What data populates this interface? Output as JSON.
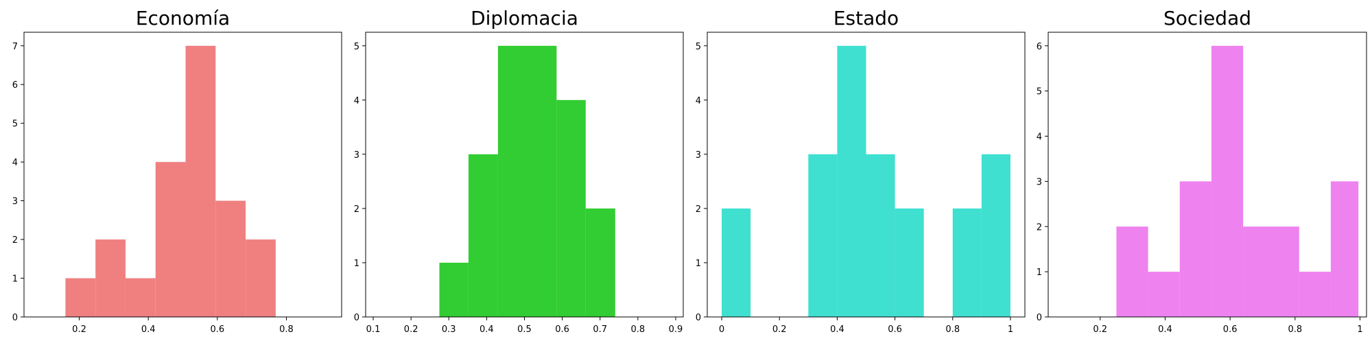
{
  "chart_data": [
    {
      "type": "histogram",
      "title": "Economía",
      "color": "#f08080",
      "xlim": [
        0.04,
        0.96
      ],
      "ylim": [
        0,
        7.35
      ],
      "xticks": [
        0.2,
        0.4,
        0.6,
        0.8
      ],
      "yticks": [
        0,
        1,
        2,
        3,
        4,
        5,
        6,
        7
      ],
      "bins": [
        {
          "x0": 0.16,
          "x1": 0.247,
          "count": 1
        },
        {
          "x0": 0.247,
          "x1": 0.334,
          "count": 2
        },
        {
          "x0": 0.334,
          "x1": 0.421,
          "count": 1
        },
        {
          "x0": 0.421,
          "x1": 0.508,
          "count": 4
        },
        {
          "x0": 0.508,
          "x1": 0.595,
          "count": 7
        },
        {
          "x0": 0.595,
          "x1": 0.682,
          "count": 3
        },
        {
          "x0": 0.682,
          "x1": 0.769,
          "count": 2
        }
      ]
    },
    {
      "type": "histogram",
      "title": "Diplomacia",
      "color": "#32cd32",
      "xlim": [
        0.08,
        0.92
      ],
      "ylim": [
        0,
        5.25
      ],
      "xticks": [
        0.1,
        0.2,
        0.3,
        0.4,
        0.5,
        0.6,
        0.7,
        0.8,
        0.9
      ],
      "yticks": [
        0,
        1,
        2,
        3,
        4,
        5
      ],
      "bins": [
        {
          "x0": 0.275,
          "x1": 0.352,
          "count": 1
        },
        {
          "x0": 0.352,
          "x1": 0.43,
          "count": 3
        },
        {
          "x0": 0.43,
          "x1": 0.585,
          "count": 5
        },
        {
          "x0": 0.585,
          "x1": 0.662,
          "count": 4
        },
        {
          "x0": 0.662,
          "x1": 0.74,
          "count": 2
        }
      ]
    },
    {
      "type": "histogram",
      "title": "Estado",
      "color": "#40e0d0",
      "xlim": [
        -0.05,
        1.05
      ],
      "ylim": [
        0,
        5.25
      ],
      "xticks": [
        0.0,
        0.2,
        0.4,
        0.6,
        0.8,
        1.0
      ],
      "yticks": [
        0,
        1,
        2,
        3,
        4,
        5
      ],
      "bins": [
        {
          "x0": 0.0,
          "x1": 0.1,
          "count": 2
        },
        {
          "x0": 0.3,
          "x1": 0.4,
          "count": 3
        },
        {
          "x0": 0.4,
          "x1": 0.5,
          "count": 5
        },
        {
          "x0": 0.5,
          "x1": 0.6,
          "count": 3
        },
        {
          "x0": 0.6,
          "x1": 0.7,
          "count": 2
        },
        {
          "x0": 0.8,
          "x1": 0.9,
          "count": 2
        },
        {
          "x0": 0.9,
          "x1": 1.0,
          "count": 3
        }
      ]
    },
    {
      "type": "histogram",
      "title": "Sociedad",
      "color": "#ee82ee",
      "xlim": [
        0.04,
        1.02
      ],
      "ylim": [
        0,
        6.3
      ],
      "xticks": [
        0.2,
        0.4,
        0.6,
        0.8,
        1.0
      ],
      "yticks": [
        0,
        1,
        2,
        3,
        4,
        5,
        6
      ],
      "bins": [
        {
          "x0": 0.25,
          "x1": 0.3475,
          "count": 2
        },
        {
          "x0": 0.3475,
          "x1": 0.445,
          "count": 1
        },
        {
          "x0": 0.445,
          "x1": 0.5425,
          "count": 3
        },
        {
          "x0": 0.5425,
          "x1": 0.64,
          "count": 6
        },
        {
          "x0": 0.64,
          "x1": 0.8125,
          "count": 2
        },
        {
          "x0": 0.8125,
          "x1": 0.91,
          "count": 1
        },
        {
          "x0": 0.91,
          "x1": 0.995,
          "count": 3
        }
      ]
    }
  ]
}
